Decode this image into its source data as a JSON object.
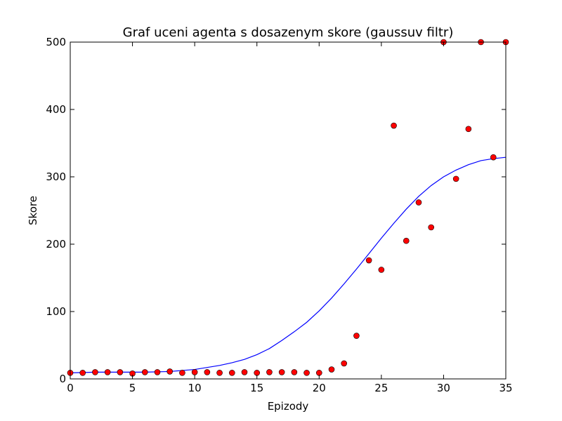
{
  "chart_data": {
    "type": "scatter",
    "title": "Graf uceni agenta s dosazenym skore (gaussuv filtr)",
    "xlabel": "Epizody",
    "ylabel": "Skore",
    "xlim": [
      0,
      35
    ],
    "ylim": [
      0,
      500
    ],
    "x_ticks": [
      "0",
      "5",
      "10",
      "15",
      "20",
      "25",
      "30",
      "35"
    ],
    "y_ticks": [
      "0",
      "100",
      "200",
      "300",
      "400",
      "500"
    ],
    "grid": false,
    "legend": "none",
    "series": [
      {
        "kind": "points",
        "color": "#ff0000",
        "x": [
          0,
          1,
          2,
          3,
          4,
          5,
          6,
          7,
          8,
          9,
          10,
          11,
          12,
          13,
          14,
          15,
          16,
          17,
          18,
          19,
          20,
          21,
          22,
          23,
          24,
          25,
          26,
          27,
          28,
          29,
          30,
          31,
          32,
          33,
          34,
          35
        ],
        "y": [
          9,
          9,
          10,
          10,
          10,
          8,
          10,
          10,
          11,
          9,
          10,
          10,
          9,
          9,
          10,
          9,
          10,
          10,
          10,
          9,
          9,
          14,
          23,
          64,
          176,
          162,
          376,
          205,
          262,
          225,
          500,
          297,
          371,
          500,
          329,
          500
        ]
      },
      {
        "kind": "line",
        "color": "#0000ff",
        "x": [
          0,
          2,
          4,
          6,
          8,
          10,
          11,
          12,
          13,
          14,
          15,
          16,
          17,
          18,
          19,
          20,
          21,
          22,
          23,
          24,
          25,
          26,
          27,
          28,
          29,
          30,
          31,
          32,
          33,
          34,
          35
        ],
        "y": [
          9,
          10,
          10,
          10,
          11,
          14,
          17,
          20,
          24,
          29,
          36,
          45,
          57,
          70,
          84,
          101,
          120,
          141,
          163,
          186,
          209,
          231,
          252,
          271,
          287,
          300,
          310,
          318,
          324,
          327,
          329
        ]
      }
    ]
  }
}
